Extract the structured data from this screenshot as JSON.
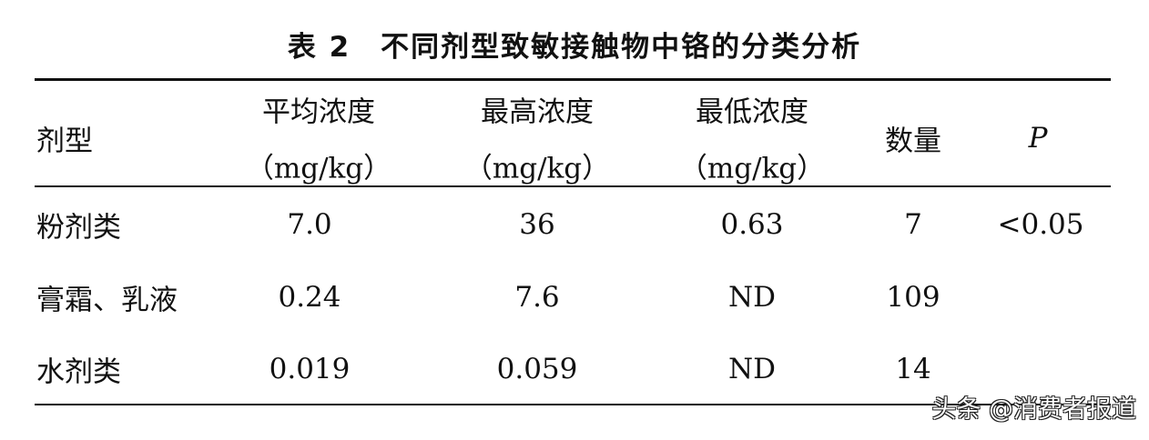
{
  "title": "表 2　不同剂型致敏接触物中铬的分类分析",
  "headers": [
    {
      "line1": "剂型",
      "line2": ""
    },
    {
      "line1": "平均浓度",
      "line2": "（mg/kg）"
    },
    {
      "line1": "最高浓度",
      "line2": "（mg/kg）"
    },
    {
      "line1": "最低浓度",
      "line2": "（mg/kg）"
    },
    {
      "line1": "数量",
      "line2": ""
    },
    {
      "line1": "P",
      "line2": ""
    }
  ],
  "rows": [
    [
      "粉剂类",
      "7.0",
      "36",
      "0.63",
      "7",
      "<0.05"
    ],
    [
      "膏霜、乳液",
      "0.24",
      "7.6",
      "ND",
      "109",
      ""
    ],
    [
      "水剂类",
      "0.019",
      "0.059",
      "ND",
      "14",
      ""
    ]
  ],
  "watermark": "头条 @消费者报道"
}
